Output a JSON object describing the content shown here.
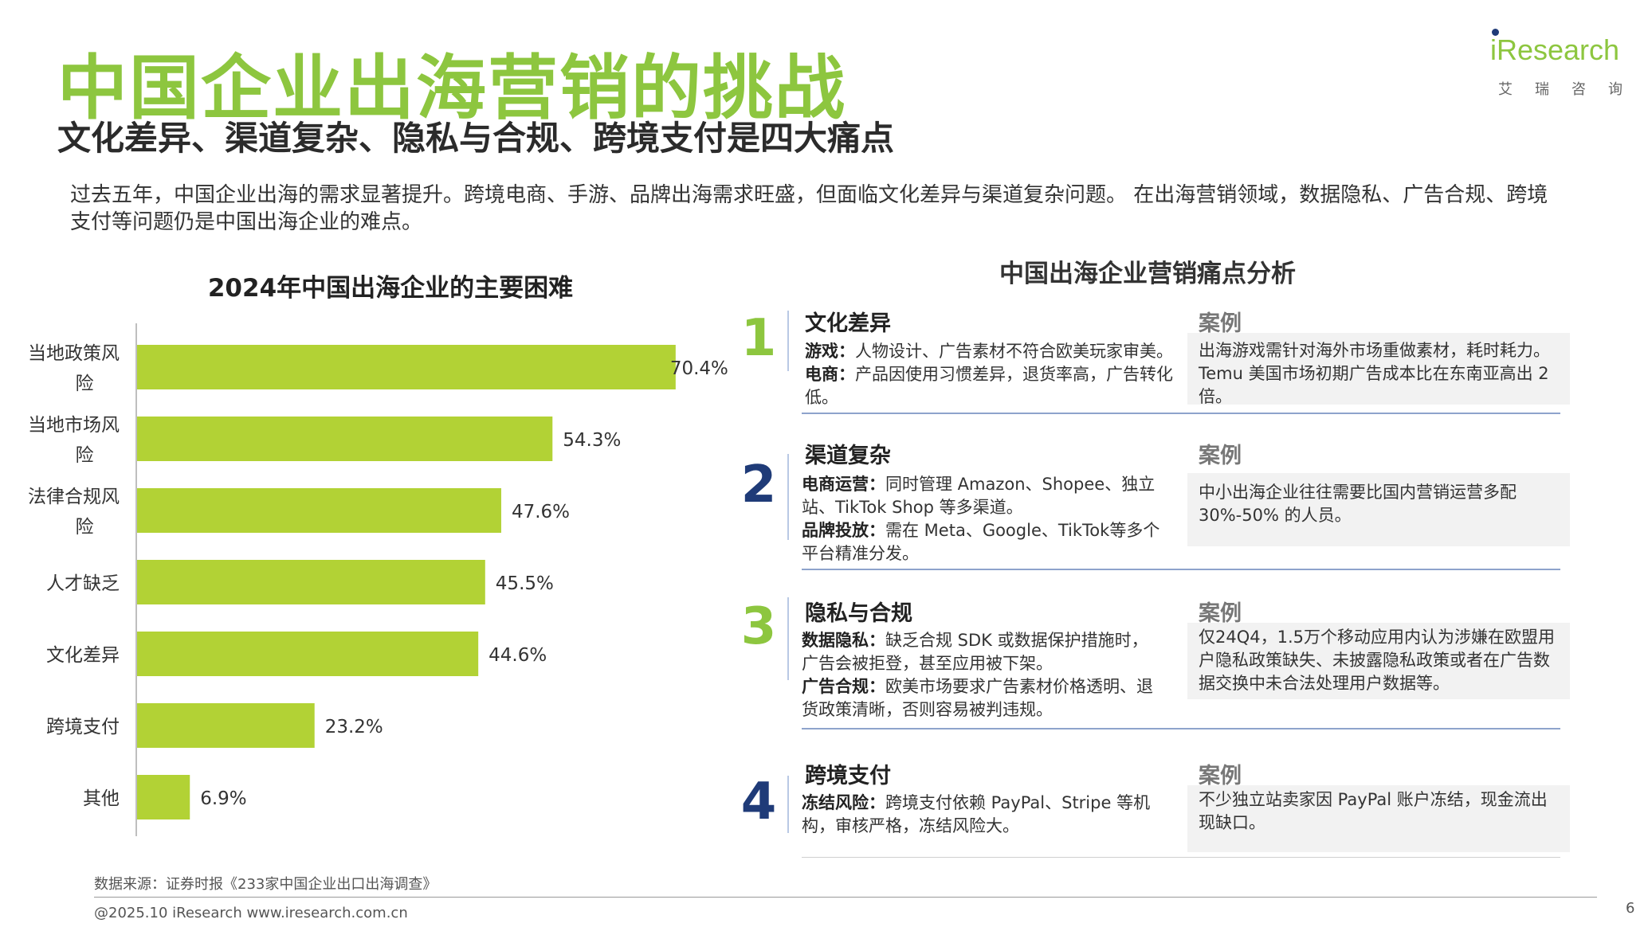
{
  "header": {
    "title": "中国企业出海营销的挑战",
    "subtitle": "文化差异、渠道复杂、隐私与合规、跨境支付是四大痛点",
    "intro": "过去五年，中国企业出海的需求显著提升。跨境电商、手游、品牌出海需求旺盛，但面临文化差异与渠道复杂问题。 在出海营销领域，数据隐私、广告合规、跨境支付等问题仍是中国出海企业的难点。"
  },
  "logo": {
    "name": "iResearch",
    "cn": "艾瑞咨询"
  },
  "chart_data": {
    "type": "bar",
    "orientation": "horizontal",
    "title": "2024年中国出海企业的主要困难",
    "categories": [
      "当地政策风险",
      "当地市场风险",
      "法律合规风险",
      "人才缺乏",
      "文化差异",
      "跨境支付",
      "其他"
    ],
    "label_lines": [
      [
        "当地政策风",
        "险"
      ],
      [
        "当地市场风",
        "险"
      ],
      [
        "法律合规风",
        "险"
      ],
      [
        "人才缺乏"
      ],
      [
        "文化差异"
      ],
      [
        "跨境支付"
      ],
      [
        "其他"
      ]
    ],
    "values": [
      70.4,
      54.3,
      47.6,
      45.5,
      44.6,
      23.2,
      6.9
    ],
    "value_labels": [
      "70.4%",
      "54.3%",
      "47.6%",
      "45.5%",
      "44.6%",
      "23.2%",
      "6.9%"
    ],
    "unit": "%",
    "xlim": [
      0,
      80
    ],
    "bar_color": "#b2d235"
  },
  "panel": {
    "title": "中国出海企业营销痛点分析",
    "items": [
      {
        "num": "1",
        "title": "文化差异",
        "lines": [
          {
            "label": "游戏：",
            "text": "人物设计、广告素材不符合欧美玩家审美。"
          },
          {
            "label": "电商：",
            "text": "产品因使用习惯差异，退货率高，广告转化低。"
          }
        ],
        "case_label": "案例",
        "case_text": "出海游戏需针对海外市场重做素材，耗时耗力。\nTemu 美国市场初期广告成本比在东南亚高出 2 倍。"
      },
      {
        "num": "2",
        "title": "渠道复杂",
        "lines": [
          {
            "label": "电商运营：",
            "text": "同时管理 Amazon、Shopee、独立站、TikTok Shop 等多渠道。"
          },
          {
            "label": "品牌投放：",
            "text": "需在 Meta、Google、TikTok等多个平台精准分发。"
          }
        ],
        "case_label": "案例",
        "case_text": "中小出海企业往往需要比国内营销运营多配 30%-50% 的人员。"
      },
      {
        "num": "3",
        "title": "隐私与合规",
        "lines": [
          {
            "label": "数据隐私：",
            "text": "缺乏合规 SDK 或数据保护措施时，广告会被拒登，甚至应用被下架。"
          },
          {
            "label": "广告合规：",
            "text": "欧美市场要求广告素材价格透明、退货政策清晰，否则容易被判违规。"
          }
        ],
        "case_label": "案例",
        "case_text": "仅24Q4，1.5万个移动应用内认为涉嫌在欧盟用户隐私政策缺失、未披露隐私政策或者在广告数据交换中未合法处理用户数据等。"
      },
      {
        "num": "4",
        "title": "跨境支付",
        "lines": [
          {
            "label": "冻结风险：",
            "text": "跨境支付依赖 PayPal、Stripe 等机构，审核严格，冻结风险大。"
          }
        ],
        "case_label": "案例",
        "case_text": "不少独立站卖家因 PayPal 账户冻结，现金流出现缺口。"
      }
    ]
  },
  "footer": {
    "source": "数据来源：证券时报《233家中国企业出口出海调查》",
    "copyright": "@2025.10 iResearch www.iresearch.com.cn",
    "page": "6"
  },
  "colors": {
    "green": "#8dc63f",
    "navy": "#1f3b78",
    "bar": "#b2d235"
  }
}
